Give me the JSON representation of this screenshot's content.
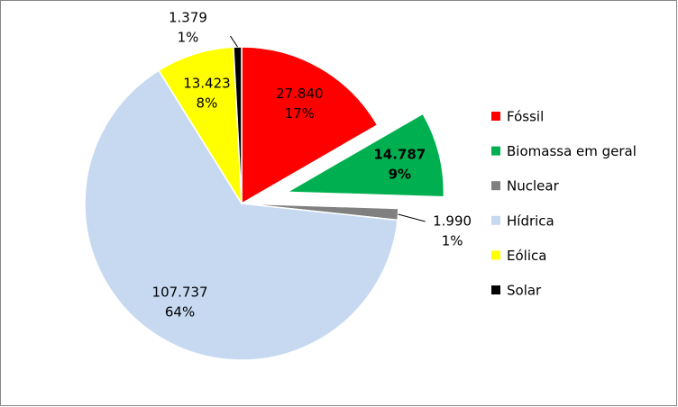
{
  "chart_data": {
    "type": "pie",
    "categories": [
      "Fóssil",
      "Biomassa em geral",
      "Nuclear",
      "Hídrica",
      "Eólica",
      "Solar"
    ],
    "values": [
      27840,
      14787,
      1990,
      107737,
      13423,
      1379
    ],
    "value_labels": [
      "27.840",
      "14.787",
      "1.990",
      "107.737",
      "13.423",
      "1.379"
    ],
    "percent_labels": [
      "17%",
      "9%",
      "1%",
      "64%",
      "8%",
      "1%"
    ],
    "colors": [
      "#ff0000",
      "#00b050",
      "#808080",
      "#c6d9f1",
      "#ffff00",
      "#000000"
    ],
    "exploded": [
      1
    ],
    "legend": "right"
  }
}
